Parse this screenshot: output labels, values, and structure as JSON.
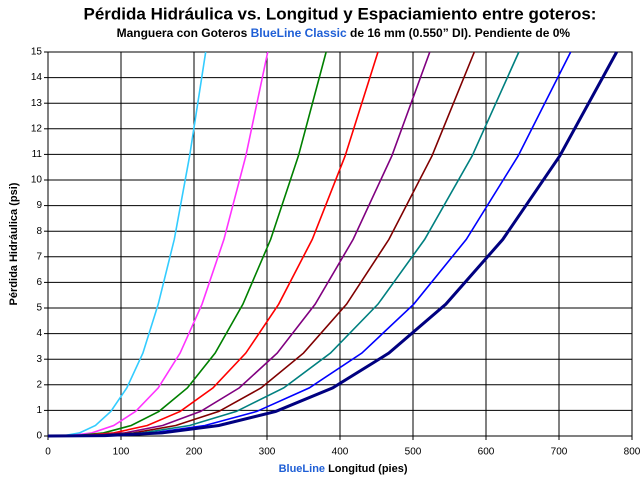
{
  "chart_data": {
    "type": "line",
    "title": "Pérdida Hidráulica vs. Longitud y Espaciamiento entre goteros:",
    "subtitle": [
      "Manguera con Goteros ",
      "BlueLine Classic",
      " de 16 mm (0.550” DI). Pendiente de 0%"
    ],
    "x_label": [
      "BlueLine",
      " Longitud (pies)"
    ],
    "y_label": "Pérdida Hidráulica (psi)",
    "highlight_color": "#1f5fd6",
    "xlim": [
      0,
      800
    ],
    "xticks": [
      0,
      100,
      200,
      300,
      400,
      500,
      600,
      700,
      800
    ],
    "ylim": [
      0,
      15
    ],
    "yticks": [
      0,
      1,
      2,
      3,
      4,
      5,
      6,
      7,
      8,
      9,
      10,
      11,
      12,
      13,
      14,
      15
    ],
    "grid": true,
    "series": [
      {
        "color": "#33ccff",
        "x": [
          0,
          22,
          43,
          65,
          86,
          108,
          130,
          151,
          173,
          194,
          216
        ],
        "values": [
          0,
          0.015,
          0.12,
          0.41,
          0.96,
          1.88,
          3.24,
          5.15,
          7.68,
          10.94,
          15
        ]
      },
      {
        "color": "#ff33ff",
        "x": [
          0,
          30,
          60,
          90,
          120,
          151,
          181,
          211,
          241,
          271,
          301
        ],
        "values": [
          0,
          0.015,
          0.12,
          0.41,
          0.96,
          1.88,
          3.24,
          5.15,
          7.68,
          10.94,
          15
        ]
      },
      {
        "color": "#008000",
        "x": [
          0,
          38,
          76,
          114,
          152,
          191,
          229,
          267,
          305,
          343,
          381
        ],
        "values": [
          0,
          0.015,
          0.12,
          0.41,
          0.96,
          1.88,
          3.24,
          5.15,
          7.68,
          10.94,
          15
        ]
      },
      {
        "color": "#ff0000",
        "x": [
          0,
          45,
          90,
          136,
          181,
          226,
          271,
          316,
          362,
          407,
          452
        ],
        "values": [
          0,
          0.015,
          0.12,
          0.41,
          0.96,
          1.88,
          3.24,
          5.15,
          7.68,
          10.94,
          15
        ]
      },
      {
        "color": "#800080",
        "x": [
          0,
          52,
          105,
          157,
          209,
          262,
          314,
          366,
          418,
          471,
          523
        ],
        "values": [
          0,
          0.015,
          0.12,
          0.41,
          0.96,
          1.88,
          3.24,
          5.15,
          7.68,
          10.94,
          15
        ]
      },
      {
        "color": "#800000",
        "x": [
          0,
          58,
          117,
          175,
          234,
          292,
          350,
          409,
          467,
          526,
          584
        ],
        "values": [
          0,
          0.015,
          0.12,
          0.41,
          0.96,
          1.88,
          3.24,
          5.15,
          7.68,
          10.94,
          15
        ]
      },
      {
        "color": "#008080",
        "x": [
          0,
          65,
          129,
          194,
          258,
          323,
          387,
          452,
          516,
          581,
          645
        ],
        "values": [
          0,
          0.015,
          0.12,
          0.41,
          0.96,
          1.88,
          3.24,
          5.15,
          7.68,
          10.94,
          15
        ]
      },
      {
        "color": "#0000ff",
        "x": [
          0,
          72,
          143,
          215,
          286,
          358,
          430,
          501,
          573,
          644,
          716
        ],
        "values": [
          0,
          0.015,
          0.12,
          0.41,
          0.96,
          1.88,
          3.24,
          5.15,
          7.68,
          10.94,
          15
        ]
      },
      {
        "color": "#000080",
        "x": [
          0,
          78,
          156,
          234,
          312,
          390,
          467,
          545,
          623,
          701,
          779
        ],
        "values": [
          0,
          0.015,
          0.12,
          0.41,
          0.96,
          1.88,
          3.24,
          5.15,
          7.68,
          10.94,
          15
        ]
      }
    ]
  }
}
